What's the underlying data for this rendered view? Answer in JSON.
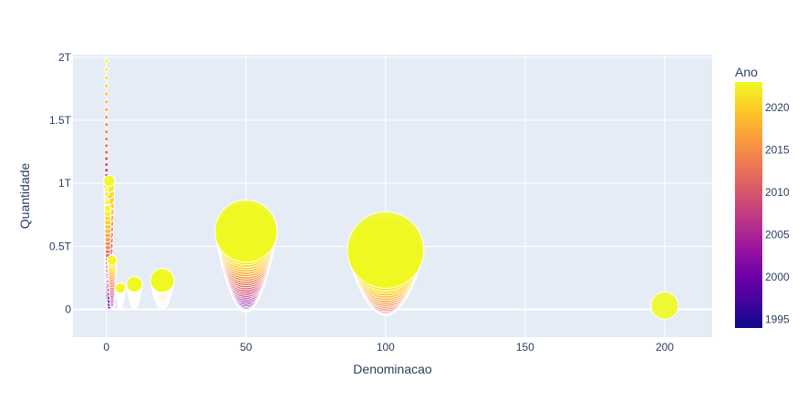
{
  "chart_data": {
    "type": "scatter",
    "subtype": "bubble",
    "xlabel": "Denominacao",
    "ylabel": "Quantidade",
    "xlim": [
      -12,
      217
    ],
    "ylim": [
      -0.22,
      2.02
    ],
    "x_ticks": [
      {
        "value": 0,
        "label": "0"
      },
      {
        "value": 50,
        "label": "50"
      },
      {
        "value": 100,
        "label": "100"
      },
      {
        "value": 150,
        "label": "150"
      },
      {
        "value": 200,
        "label": "200"
      }
    ],
    "y_ticks": [
      {
        "value": 0,
        "label": "0"
      },
      {
        "value": 0.5,
        "label": "0.5T"
      },
      {
        "value": 1.0,
        "label": "1T"
      },
      {
        "value": 1.5,
        "label": "1.5T"
      },
      {
        "value": 2.0,
        "label": "2T"
      }
    ],
    "color_scale": {
      "title": "Ano",
      "colorscale": "plasma",
      "range": [
        1994,
        2023
      ],
      "ticks": [
        {
          "value": 1995,
          "label": "1995"
        },
        {
          "value": 2000,
          "label": "2000"
        },
        {
          "value": 2005,
          "label": "2005"
        },
        {
          "value": 2010,
          "label": "2010"
        },
        {
          "value": 2015,
          "label": "2015"
        },
        {
          "value": 2020,
          "label": "2020"
        }
      ]
    },
    "grid": true,
    "series": [
      {
        "denomination": 0.01,
        "year_range": [
          2005,
          2023
        ],
        "quantity_range": [
          1.0,
          1.97
        ]
      },
      {
        "denomination": 0.05,
        "year_range": [
          1998,
          2023
        ],
        "quantity_range": [
          0.3,
          1.03
        ]
      },
      {
        "denomination": 0.1,
        "year_range": [
          1998,
          2023
        ],
        "quantity_range": [
          0.22,
          0.95
        ]
      },
      {
        "denomination": 0.25,
        "year_range": [
          1998,
          2023
        ],
        "quantity_range": [
          0.15,
          0.85
        ]
      },
      {
        "denomination": 0.5,
        "year_range": [
          1998,
          2023
        ],
        "quantity_range": [
          0.08,
          0.8
        ]
      },
      {
        "denomination": 1,
        "year_range": [
          1998,
          2023
        ],
        "quantity_range": [
          0.02,
          1.02
        ]
      },
      {
        "denomination": 2,
        "year_range": [
          2001,
          2023
        ],
        "quantity_range": [
          0.03,
          0.39
        ]
      },
      {
        "denomination": 5,
        "year_range": [
          1994,
          2023
        ],
        "quantity_range": [
          0.02,
          0.17
        ]
      },
      {
        "denomination": 10,
        "year_range": [
          1994,
          2023
        ],
        "quantity_range": [
          0.02,
          0.2
        ]
      },
      {
        "denomination": 20,
        "year_range": [
          2002,
          2023
        ],
        "quantity_range": [
          0.05,
          0.23
        ]
      },
      {
        "denomination": 50,
        "year_range": [
          1994,
          2023
        ],
        "quantity_range": [
          0.04,
          0.62
        ]
      },
      {
        "denomination": 100,
        "year_range": [
          2005,
          2023
        ],
        "quantity_range": [
          0.03,
          0.47
        ]
      },
      {
        "denomination": 200,
        "year_range": [
          2023,
          2023
        ],
        "quantity_range": [
          0.03,
          0.03
        ]
      }
    ]
  }
}
